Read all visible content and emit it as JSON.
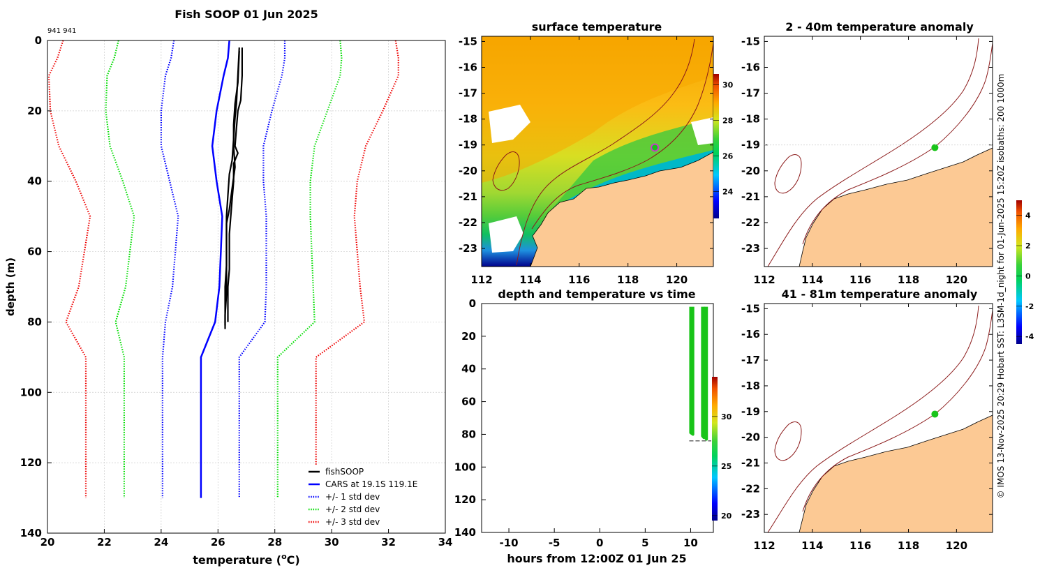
{
  "colors": {
    "fishsoop": "#000000",
    "cars": "#0000ff",
    "std1": "#0000ff",
    "std2": "#00dd00",
    "std3": "#ee0000",
    "land": "#fcc994",
    "coast_line": "#8b1a1a",
    "marker_fill": "#19c419",
    "marker_ring": "#c83dc8",
    "grid": "#cccccc"
  },
  "figure": {
    "title": "Fish SOOP 01 Jun 2025",
    "ids_label": "941 941",
    "side_note": "© IMOS 13-Nov-2025 20:29 Hobart SST: L3SM-1d_night for 01-Jun-2025 15:20Z isobaths: 200  1000m"
  },
  "chart_data": [
    {
      "id": "profile",
      "type": "line",
      "title": "Fish SOOP 01 Jun 2025",
      "xlabel_main": "temperature (",
      "xlabel_sup": "o",
      "xlabel_end": "C)",
      "ylabel": "depth (m)",
      "xlim": [
        20,
        34
      ],
      "ylim": [
        0,
        140
      ],
      "y_reversed": true,
      "grid": true,
      "xticks": [
        20,
        22,
        24,
        26,
        28,
        30,
        32,
        34
      ],
      "yticks": [
        0,
        20,
        40,
        60,
        80,
        100,
        120,
        140
      ],
      "legend_position": "bottom-right",
      "legend": [
        "fishSOOP",
        "CARS at 19.1S 119.1E",
        "+/- 1 std dev",
        "+/- 2 std dev",
        "+/- 3 std dev"
      ],
      "cars_depth": [
        0,
        5,
        10,
        20,
        30,
        40,
        50,
        60,
        70,
        80,
        90,
        100,
        110,
        120,
        130
      ],
      "cars_mean": [
        26.4,
        26.35,
        26.2,
        25.95,
        25.8,
        25.95,
        26.15,
        26.1,
        26.05,
        25.9,
        25.4,
        25.4,
        25.4,
        25.4,
        25.4
      ],
      "std1": [
        1.95,
        2.0,
        2.05,
        1.95,
        1.8,
        1.65,
        1.55,
        1.6,
        1.65,
        1.75,
        1.35,
        1.35,
        1.35,
        1.35,
        1.35
      ],
      "fishsoop_casts": [
        {
          "depth": [
            2,
            10,
            17,
            20,
            25,
            30,
            32,
            35,
            40,
            45,
            50,
            55,
            60,
            65,
            70,
            75,
            80
          ],
          "temp": [
            26.85,
            26.85,
            26.8,
            26.7,
            26.65,
            26.6,
            26.7,
            26.55,
            26.55,
            26.5,
            26.45,
            26.4,
            26.4,
            26.4,
            26.35,
            26.35,
            26.35
          ]
        },
        {
          "depth": [
            2,
            10,
            18,
            22,
            28,
            34,
            38,
            44,
            50,
            55,
            60,
            66,
            72,
            78,
            81
          ],
          "temp": [
            26.75,
            26.7,
            26.65,
            26.6,
            26.55,
            26.5,
            26.4,
            26.35,
            26.3,
            26.3,
            26.3,
            26.3,
            26.3,
            26.25,
            26.25
          ]
        },
        {
          "depth": [
            3,
            12,
            18,
            24,
            30,
            36,
            42,
            48,
            52,
            58,
            64,
            70,
            76,
            82
          ],
          "temp": [
            26.75,
            26.7,
            26.6,
            26.55,
            26.55,
            26.6,
            26.5,
            26.4,
            26.3,
            26.3,
            26.3,
            26.25,
            26.25,
            26.25
          ]
        }
      ]
    },
    {
      "id": "sst_map",
      "type": "heatmap",
      "title": "surface temperature",
      "xlim": [
        112,
        121.5
      ],
      "ylim": [
        -23.7,
        -14.8
      ],
      "xticks": [
        112,
        114,
        116,
        118,
        120
      ],
      "yticks": [
        -15,
        -16,
        -17,
        -18,
        -19,
        -20,
        -21,
        -22,
        -23
      ],
      "colorbar_ticks": [
        24,
        26,
        28,
        30
      ],
      "colorbar_range": [
        22.5,
        30.6
      ],
      "station_lon": 119.1,
      "station_lat": -19.1
    },
    {
      "id": "depth_time",
      "type": "scatter",
      "title": "depth and temperature vs time",
      "xlabel": "hours from 12:00Z 01 Jun 25",
      "xlim": [
        -13,
        12.5
      ],
      "ylim": [
        0,
        140
      ],
      "xticks": [
        -10,
        -5,
        0,
        5,
        10
      ],
      "yticks": [
        0,
        20,
        40,
        60,
        80,
        100,
        120,
        140
      ],
      "colorbar_ticks": [
        20,
        25,
        30
      ],
      "colorbar_range": [
        19.5,
        34
      ],
      "casts": [
        {
          "t0": 10.0,
          "t1": 10.25,
          "bottom": 79
        },
        {
          "t0": 11.3,
          "t1": 11.45,
          "bottom": 81
        },
        {
          "t0": 11.6,
          "t1": 11.75,
          "bottom": 82
        }
      ],
      "bottom_depth": 84
    },
    {
      "id": "anom_shallow",
      "type": "scatter",
      "title": "2 - 40m temperature anomaly",
      "xlim": [
        112,
        121.5
      ],
      "ylim": [
        -23.7,
        -14.8
      ],
      "xticks": [
        112,
        114,
        116,
        118,
        120
      ],
      "yticks": [
        -15,
        -16,
        -17,
        -18,
        -19,
        -20,
        -21,
        -22,
        -23
      ],
      "station_lon": 119.1,
      "station_lat": -19.1,
      "anomaly": 0.2
    },
    {
      "id": "anom_deep",
      "type": "scatter",
      "title": "41 - 81m temperature anomaly",
      "xlim": [
        112,
        121.5
      ],
      "ylim": [
        -23.7,
        -14.8
      ],
      "xticks": [
        112,
        114,
        116,
        118,
        120
      ],
      "yticks": [
        -15,
        -16,
        -17,
        -18,
        -19,
        -20,
        -21,
        -22,
        -23
      ],
      "station_lon": 119.1,
      "station_lat": -19.1,
      "anomaly": 0.2,
      "colorbar_ticks": [
        4,
        2,
        0,
        -2,
        -4
      ],
      "colorbar_range": [
        -4.5,
        5
      ]
    }
  ]
}
